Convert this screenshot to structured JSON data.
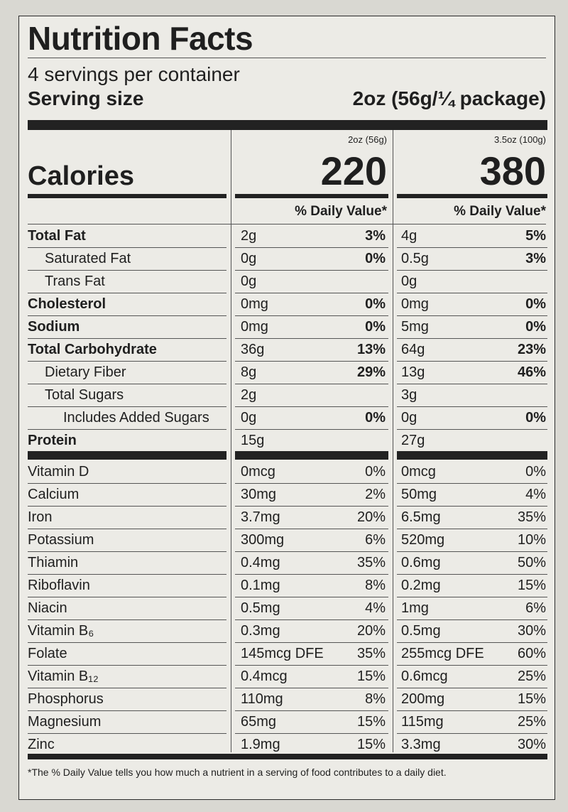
{
  "label": {
    "title": "Nutrition Facts",
    "servings": "4 servings per container",
    "serving_size_label": "Serving size",
    "serving_size_value": "2oz (56g/¼ package)",
    "calories_label": "Calories",
    "columns": [
      {
        "header": "2oz (56g)",
        "calories": "220",
        "dv_header": "% Daily Value*"
      },
      {
        "header": "3.5oz (100g)",
        "calories": "380",
        "dv_header": "% Daily Value*"
      }
    ],
    "nutrients": [
      {
        "name": "Total Fat",
        "style": "bold",
        "c1": "2g",
        "p1": "3%",
        "c2": "4g",
        "p2": "5%"
      },
      {
        "name": "Saturated Fat",
        "style": "ind1",
        "c1": "0g",
        "p1": "0%",
        "c2": "0.5g",
        "p2": "3%"
      },
      {
        "name": "Trans Fat",
        "style": "ind1",
        "c1": "0g",
        "p1": "",
        "c2": "0g",
        "p2": ""
      },
      {
        "name": "Cholesterol",
        "style": "bold",
        "c1": "0mg",
        "p1": "0%",
        "c2": "0mg",
        "p2": "0%"
      },
      {
        "name": "Sodium",
        "style": "bold",
        "c1": "0mg",
        "p1": "0%",
        "c2": "5mg",
        "p2": "0%"
      },
      {
        "name": "Total Carbohydrate",
        "style": "bold",
        "c1": "36g",
        "p1": "13%",
        "c2": "64g",
        "p2": "23%"
      },
      {
        "name": "Dietary Fiber",
        "style": "ind1",
        "c1": "8g",
        "p1": "29%",
        "c2": "13g",
        "p2": "46%"
      },
      {
        "name": "Total Sugars",
        "style": "ind1",
        "c1": "2g",
        "p1": "",
        "c2": "3g",
        "p2": ""
      },
      {
        "name": "Includes Added Sugars",
        "style": "ind2",
        "c1": "0g",
        "p1": "0%",
        "c2": "0g",
        "p2": "0%"
      },
      {
        "name": "Protein",
        "style": "bold",
        "c1": "15g",
        "p1": "",
        "c2": "27g",
        "p2": ""
      }
    ],
    "vitamins": [
      {
        "name": "Vitamin D",
        "c1": "0mcg",
        "p1": "0%",
        "c2": "0mcg",
        "p2": "0%"
      },
      {
        "name": "Calcium",
        "c1": "30mg",
        "p1": "2%",
        "c2": "50mg",
        "p2": "4%"
      },
      {
        "name": "Iron",
        "c1": "3.7mg",
        "p1": "20%",
        "c2": "6.5mg",
        "p2": "35%"
      },
      {
        "name": "Potassium",
        "c1": "300mg",
        "p1": "6%",
        "c2": "520mg",
        "p2": "10%"
      },
      {
        "name": "Thiamin",
        "c1": "0.4mg",
        "p1": "35%",
        "c2": "0.6mg",
        "p2": "50%"
      },
      {
        "name": "Riboflavin",
        "c1": "0.1mg",
        "p1": "8%",
        "c2": "0.2mg",
        "p2": "15%"
      },
      {
        "name": "Niacin",
        "c1": "0.5mg",
        "p1": "4%",
        "c2": "1mg",
        "p2": "6%"
      },
      {
        "name": "Vitamin B₆",
        "c1": "0.3mg",
        "p1": "20%",
        "c2": "0.5mg",
        "p2": "30%"
      },
      {
        "name": "Folate",
        "c1": "145mcg DFE",
        "p1": "35%",
        "c2": "255mcg DFE",
        "p2": "60%"
      },
      {
        "name": "Vitamin B₁₂",
        "c1": "0.4mcg",
        "p1": "15%",
        "c2": "0.6mcg",
        "p2": "25%"
      },
      {
        "name": "Phosphorus",
        "c1": "110mg",
        "p1": "8%",
        "c2": "200mg",
        "p2": "15%"
      },
      {
        "name": "Magnesium",
        "c1": "65mg",
        "p1": "15%",
        "c2": "115mg",
        "p2": "25%"
      },
      {
        "name": "Zinc",
        "c1": "1.9mg",
        "p1": "15%",
        "c2": "3.3mg",
        "p2": "30%"
      }
    ],
    "footnote": "*The % Daily Value tells you how much a nutrient in a serving of food contributes to a daily diet."
  }
}
